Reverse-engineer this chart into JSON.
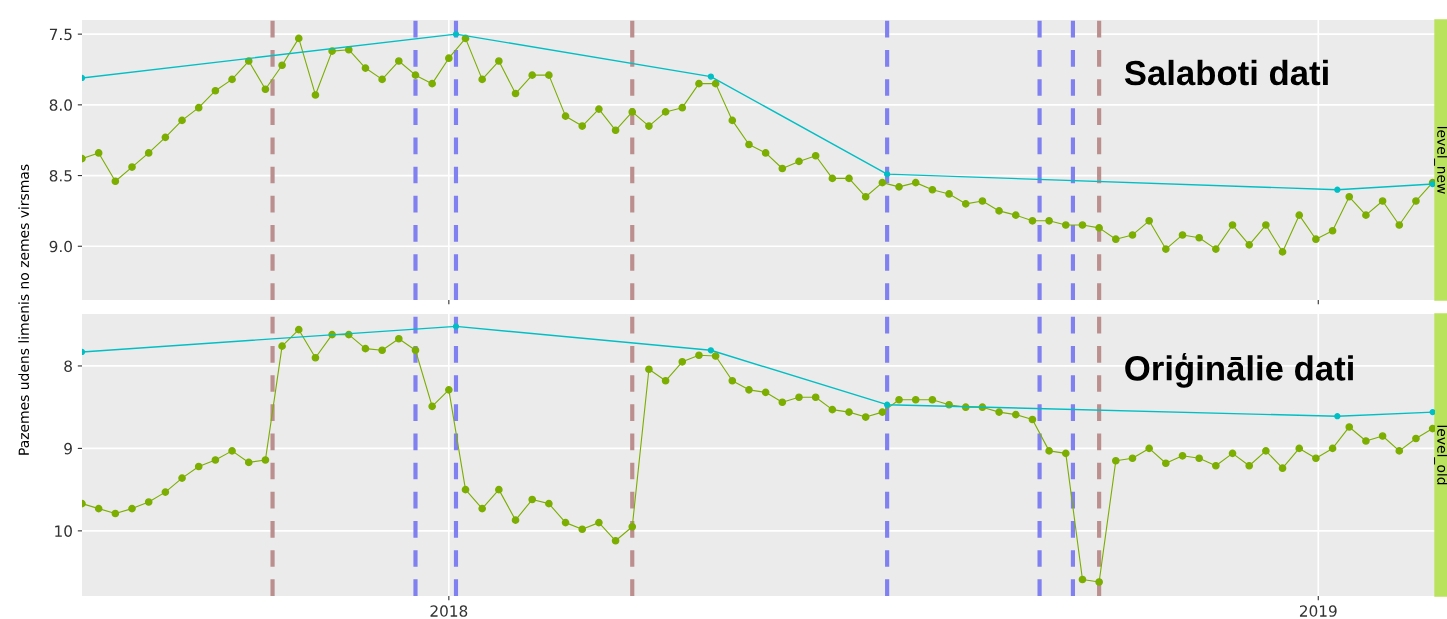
{
  "chart_data": [
    {
      "type": "line",
      "ylabel": "Pazemes udens limenis no zemes virsmas",
      "annotations": [
        "Salaboti dati",
        "level_new"
      ],
      "x": [
        "2017-07-31",
        "2017-08-07",
        "2017-08-14",
        "2017-08-21",
        "2017-08-28",
        "2017-09-04",
        "2017-09-11",
        "2017-09-18",
        "2017-09-25",
        "2017-10-02",
        "2017-10-09",
        "2017-10-16",
        "2017-10-23",
        "2017-10-30",
        "2017-11-06",
        "2017-11-13",
        "2017-11-20",
        "2017-11-27",
        "2017-12-04",
        "2017-12-11",
        "2017-12-18",
        "2017-12-25",
        "2018-01-01",
        "2018-01-08",
        "2018-01-15",
        "2018-01-22",
        "2018-01-29",
        "2018-02-05",
        "2018-02-12",
        "2018-02-19",
        "2018-02-26",
        "2018-03-05",
        "2018-03-12",
        "2018-03-19",
        "2018-03-26",
        "2018-04-02",
        "2018-04-09",
        "2018-04-16",
        "2018-04-23",
        "2018-04-30",
        "2018-05-07",
        "2018-05-14",
        "2018-05-21",
        "2018-05-28",
        "2018-06-04",
        "2018-06-11",
        "2018-06-18",
        "2018-06-25",
        "2018-07-02",
        "2018-07-09",
        "2018-07-16",
        "2018-07-23",
        "2018-07-30",
        "2018-08-06",
        "2018-08-13",
        "2018-08-20",
        "2018-08-27",
        "2018-09-03",
        "2018-09-10",
        "2018-09-17",
        "2018-09-24",
        "2018-10-01",
        "2018-10-08",
        "2018-10-15",
        "2018-10-22",
        "2018-10-29",
        "2018-11-05",
        "2018-11-12",
        "2018-11-19",
        "2018-11-26",
        "2018-12-03",
        "2018-12-10",
        "2018-12-17",
        "2018-12-24",
        "2018-12-31",
        "2019-01-07",
        "2019-01-14",
        "2019-01-21",
        "2019-01-28",
        "2019-02-04",
        "2019-02-11",
        "2019-02-18"
      ],
      "series": [
        {
          "color": "#7cae00",
          "values": [
            8.38,
            8.34,
            8.54,
            8.44,
            8.34,
            8.23,
            8.11,
            8.02,
            7.9,
            7.82,
            7.69,
            7.89,
            7.72,
            7.53,
            7.93,
            7.62,
            7.61,
            7.74,
            7.82,
            7.69,
            7.79,
            7.85,
            7.67,
            7.53,
            7.82,
            7.69,
            7.92,
            7.79,
            7.79,
            8.08,
            8.15,
            8.03,
            8.18,
            8.05,
            8.15,
            8.05,
            8.02,
            7.85,
            7.85,
            8.11,
            8.28,
            8.34,
            8.45,
            8.4,
            8.36,
            8.52,
            8.52,
            8.65,
            8.55,
            8.58,
            8.55,
            8.6,
            8.63,
            8.7,
            8.68,
            8.75,
            8.78,
            8.82,
            8.82,
            8.85,
            8.85,
            8.87,
            8.95,
            8.92,
            8.82,
            9.02,
            8.92,
            8.94,
            9.02,
            8.85,
            8.99,
            8.85,
            9.04,
            8.78,
            8.95,
            8.89,
            8.65,
            8.78,
            8.68,
            8.85,
            8.68,
            8.55
          ]
        },
        {
          "color": "#00bfc4",
          "x": [
            "2017-07-31",
            "2018-01-04",
            "2018-04-21",
            "2018-07-04",
            "2019-01-09",
            "2019-02-18"
          ],
          "values": [
            7.81,
            7.5,
            7.8,
            8.49,
            8.6,
            8.56
          ]
        }
      ],
      "marker": "circle",
      "grid": true,
      "tick_labels": "y",
      "xlim": [
        "2017-07-31",
        "2019-02-19"
      ],
      "xticks": [
        {
          "value": "2018-01-01",
          "label": null
        },
        {
          "value": "2019-01-01",
          "label": null
        }
      ],
      "ylim": [
        9.38,
        7.4
      ],
      "yticks": [
        7.5,
        {
          "value": 8.0,
          "label": "8.0"
        },
        8.5,
        {
          "value": 9.0,
          "label": "9.0"
        }
      ],
      "ref_lines": [
        {
          "axis": "x",
          "value": "2017-10-19",
          "color": "#bc8f8f",
          "line_style": "dashed"
        },
        {
          "axis": "x",
          "value": "2017-12-18",
          "color": "#8080f0",
          "line_style": "dashed"
        },
        {
          "axis": "x",
          "value": "2018-01-04",
          "color": "#8080f0",
          "line_style": "dashed"
        },
        {
          "axis": "x",
          "value": "2018-03-19",
          "color": "#bc8f8f",
          "line_style": "dashed"
        },
        {
          "axis": "x",
          "value": "2018-07-04",
          "color": "#8080f0",
          "line_style": "dashed"
        },
        {
          "axis": "x",
          "value": "2018-09-06",
          "color": "#8080f0",
          "line_style": "dashed"
        },
        {
          "axis": "x",
          "value": "2018-09-20",
          "color": "#8080f0",
          "line_style": "dashed"
        },
        {
          "axis": "x",
          "value": "2018-10-01",
          "color": "#bc8f8f",
          "line_style": "dashed"
        }
      ]
    },
    {
      "type": "line",
      "annotations": [
        "Oriģinālie dati",
        "level_old"
      ],
      "x": [
        "2017-07-31",
        "2017-08-07",
        "2017-08-14",
        "2017-08-21",
        "2017-08-28",
        "2017-09-04",
        "2017-09-11",
        "2017-09-18",
        "2017-09-25",
        "2017-10-02",
        "2017-10-09",
        "2017-10-16",
        "2017-10-23",
        "2017-10-30",
        "2017-11-06",
        "2017-11-13",
        "2017-11-20",
        "2017-11-27",
        "2017-12-04",
        "2017-12-11",
        "2017-12-18",
        "2017-12-25",
        "2018-01-01",
        "2018-01-08",
        "2018-01-15",
        "2018-01-22",
        "2018-01-29",
        "2018-02-05",
        "2018-02-12",
        "2018-02-19",
        "2018-02-26",
        "2018-03-05",
        "2018-03-12",
        "2018-03-19",
        "2018-03-26",
        "2018-04-02",
        "2018-04-09",
        "2018-04-16",
        "2018-04-23",
        "2018-04-30",
        "2018-05-07",
        "2018-05-14",
        "2018-05-21",
        "2018-05-28",
        "2018-06-04",
        "2018-06-11",
        "2018-06-18",
        "2018-06-25",
        "2018-07-02",
        "2018-07-09",
        "2018-07-16",
        "2018-07-23",
        "2018-07-30",
        "2018-08-06",
        "2018-08-13",
        "2018-08-20",
        "2018-08-27",
        "2018-09-03",
        "2018-09-10",
        "2018-09-17",
        "2018-09-24",
        "2018-10-01",
        "2018-10-08",
        "2018-10-15",
        "2018-10-22",
        "2018-10-29",
        "2018-11-05",
        "2018-11-12",
        "2018-11-19",
        "2018-11-26",
        "2018-12-03",
        "2018-12-10",
        "2018-12-17",
        "2018-12-24",
        "2018-12-31",
        "2019-01-07",
        "2019-01-14",
        "2019-01-21",
        "2019-01-28",
        "2019-02-04",
        "2019-02-11",
        "2019-02-18"
      ],
      "series": [
        {
          "color": "#7cae00",
          "values": [
            9.67,
            9.73,
            9.79,
            9.73,
            9.65,
            9.53,
            9.36,
            9.22,
            9.14,
            9.03,
            9.17,
            9.14,
            7.76,
            7.56,
            7.9,
            7.62,
            7.62,
            7.79,
            7.81,
            7.67,
            7.81,
            8.49,
            8.29,
            9.5,
            9.73,
            9.5,
            9.87,
            9.62,
            9.67,
            9.9,
            9.98,
            9.9,
            10.12,
            9.95,
            8.04,
            8.18,
            7.95,
            7.87,
            7.88,
            8.18,
            8.29,
            8.32,
            8.44,
            8.38,
            8.38,
            8.53,
            8.56,
            8.62,
            8.56,
            8.41,
            8.41,
            8.41,
            8.47,
            8.5,
            8.5,
            8.56,
            8.59,
            8.65,
            9.03,
            9.06,
            10.59,
            10.62,
            9.15,
            9.12,
            9.0,
            9.18,
            9.09,
            9.12,
            9.21,
            9.06,
            9.21,
            9.03,
            9.24,
            9.0,
            9.12,
            9.0,
            8.74,
            8.91,
            8.85,
            9.03,
            8.88,
            8.76
          ]
        },
        {
          "color": "#00bfc4",
          "x": [
            "2017-07-31",
            "2018-01-04",
            "2018-04-21",
            "2018-07-04",
            "2019-01-09",
            "2019-02-18"
          ],
          "values": [
            7.83,
            7.52,
            7.81,
            8.47,
            8.61,
            8.56
          ]
        }
      ],
      "marker": "circle",
      "grid": true,
      "xlim": [
        "2017-07-31",
        "2019-02-19"
      ],
      "xticks": [
        {
          "value": "2018-01-01",
          "label": "2018"
        },
        {
          "value": "2019-01-01",
          "label": "2019"
        }
      ],
      "ylim": [
        10.79,
        7.37
      ],
      "yticks": [
        8,
        9,
        10
      ],
      "ref_lines": [
        {
          "axis": "x",
          "value": "2017-10-19",
          "color": "#bc8f8f",
          "line_style": "dashed"
        },
        {
          "axis": "x",
          "value": "2017-12-18",
          "color": "#8080f0",
          "line_style": "dashed"
        },
        {
          "axis": "x",
          "value": "2018-01-04",
          "color": "#8080f0",
          "line_style": "dashed"
        },
        {
          "axis": "x",
          "value": "2018-03-19",
          "color": "#bc8f8f",
          "line_style": "dashed"
        },
        {
          "axis": "x",
          "value": "2018-07-04",
          "color": "#8080f0",
          "line_style": "dashed"
        },
        {
          "axis": "x",
          "value": "2018-09-06",
          "color": "#8080f0",
          "line_style": "dashed"
        },
        {
          "axis": "x",
          "value": "2018-09-20",
          "color": "#8080f0",
          "line_style": "dashed"
        },
        {
          "axis": "x",
          "value": "2018-10-01",
          "color": "#bc8f8f",
          "line_style": "dashed"
        }
      ]
    }
  ]
}
